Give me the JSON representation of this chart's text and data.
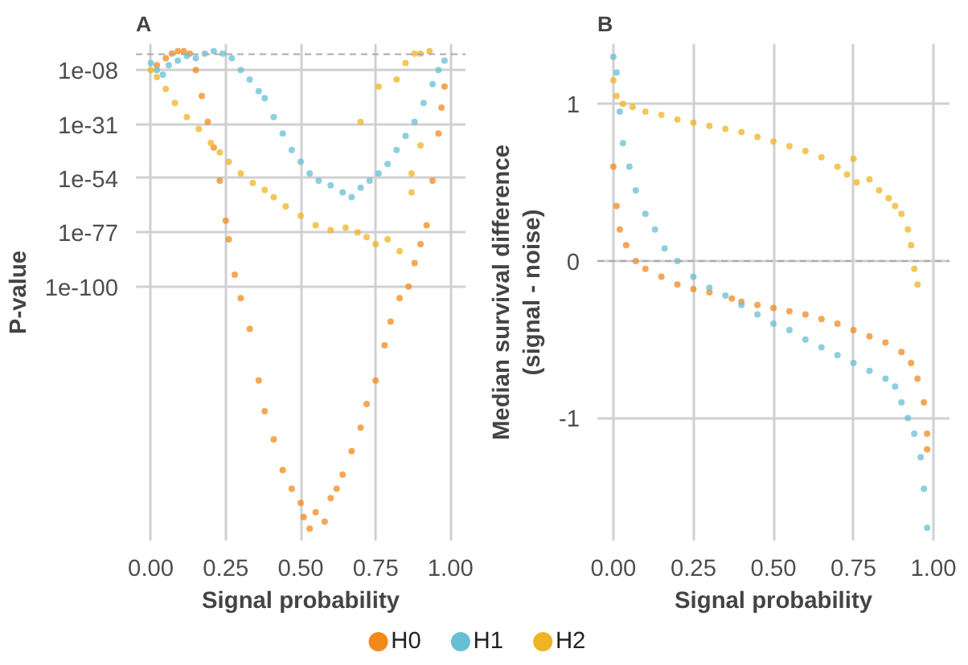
{
  "chart_data": [
    {
      "type": "scatter",
      "title": "A",
      "xlabel": "Signal probability",
      "ylabel": "P-value",
      "log": "y",
      "grid": true,
      "legend": "bottom",
      "marker": "circle",
      "xlim": [
        -0.05,
        1.05
      ],
      "xticks": [
        {
          "value": 0,
          "label": "0.00"
        },
        {
          "value": 0.25,
          "label": "0.25"
        },
        {
          "value": 0.5,
          "label": "0.50"
        },
        {
          "value": 0.75,
          "label": "0.75"
        },
        {
          "value": 1,
          "label": "1.00"
        }
      ],
      "ylim": [
        1e-208,
        1000.0
      ],
      "yticks": [
        {
          "value": 1e-08,
          "label": "1e-08"
        },
        {
          "value": 1e-31,
          "label": "1e-31"
        },
        {
          "value": 1e-54,
          "label": "1e-54"
        },
        {
          "value": 1e-77,
          "label": "1e-77"
        },
        {
          "value": 1e-100,
          "label": "1e-100"
        }
      ],
      "ref_lines": [
        {
          "axis": "y",
          "value": 0.05,
          "color": "#aaaaaa",
          "line_style": "dashed"
        }
      ],
      "series": [
        {
          "name": "H0",
          "color": "#f28a1b",
          "x": [
            0.02,
            0.05,
            0.07,
            0.09,
            0.11,
            0.13,
            0.15,
            0.17,
            0.19,
            0.21,
            0.23,
            0.25,
            0.26,
            0.28,
            0.3,
            0.33,
            0.36,
            0.38,
            0.41,
            0.44,
            0.47,
            0.5,
            0.51,
            0.53,
            0.55,
            0.58,
            0.6,
            0.62,
            0.64,
            0.67,
            0.7,
            0.72,
            0.75,
            0.78,
            0.8,
            0.83,
            0.86,
            0.88,
            0.9,
            0.92,
            0.94,
            0.96,
            0.97,
            0.98
          ],
          "values": [
            1e-06,
            0.001,
            0.1,
            1,
            1,
            0.1,
            1e-08,
            1e-19,
            1e-30,
            1e-41,
            1e-55,
            1e-72,
            1e-80,
            1e-95,
            1e-105,
            1e-118,
            1e-140,
            1e-153,
            1e-165,
            1e-178,
            1e-186,
            1e-192,
            1e-198,
            1e-203,
            1e-196,
            1e-200,
            1e-190,
            1e-186,
            1e-180,
            1e-170,
            1e-160,
            1e-150,
            1e-140,
            1e-125,
            1e-115,
            1e-105,
            1e-100,
            1e-90,
            1e-82,
            1e-74,
            1e-55,
            1e-35,
            1e-24,
            1e-15
          ]
        },
        {
          "name": "H1",
          "color": "#67bfd6",
          "x": [
            0.0,
            0.02,
            0.04,
            0.06,
            0.09,
            0.12,
            0.15,
            0.18,
            0.21,
            0.24,
            0.27,
            0.3,
            0.33,
            0.36,
            0.38,
            0.41,
            0.44,
            0.47,
            0.5,
            0.53,
            0.56,
            0.6,
            0.64,
            0.67,
            0.7,
            0.73,
            0.76,
            0.79,
            0.82,
            0.85,
            0.88,
            0.91,
            0.94,
            0.96,
            0.98
          ],
          "values": [
            1e-05,
            1e-08,
            1e-10,
            1e-06,
            0.0001,
            0.01,
            0.001,
            0.1,
            1,
            0.1,
            0.001,
            1e-08,
            1e-12,
            1e-17,
            1e-20,
            1e-28,
            1e-35,
            1e-42,
            1e-47,
            1e-52,
            1e-55,
            1e-57,
            1e-60,
            1e-62,
            1e-58,
            1e-55,
            1e-52,
            1e-48,
            1e-42,
            1e-36,
            1e-30,
            1e-22,
            1e-14,
            1e-08,
            0.0001
          ]
        },
        {
          "name": "H2",
          "color": "#f0b323",
          "x": [
            0.0,
            0.02,
            0.05,
            0.08,
            0.12,
            0.16,
            0.2,
            0.23,
            0.26,
            0.3,
            0.34,
            0.38,
            0.41,
            0.45,
            0.5,
            0.55,
            0.6,
            0.65,
            0.69,
            0.72,
            0.75,
            0.79,
            0.83,
            0.87,
            0.87,
            0.9,
            0.82,
            0.85,
            0.88,
            0.9,
            0.93,
            0.7,
            0.76
          ],
          "values": [
            1e-08,
            1e-11,
            1e-16,
            1e-22,
            1e-28,
            1e-33,
            1e-39,
            1e-43,
            1e-47,
            1e-52,
            1e-56,
            1e-59,
            1e-62,
            1e-66,
            1e-70,
            1e-74,
            1e-76,
            1e-75,
            1e-77,
            1e-79,
            1e-82,
            1e-80,
            1e-85,
            1e-60,
            1e-52,
            1e-40,
            1e-12,
            1e-05,
            0.1,
            0.1,
            1,
            1e-30,
            1e-15
          ]
        }
      ]
    },
    {
      "type": "scatter",
      "title": "B",
      "xlabel": "Signal probability",
      "ylabel": "Median survival difference\n(signal - noise)",
      "grid": true,
      "marker": "circle",
      "xlim": [
        -0.05,
        1.05
      ],
      "xticks": [
        {
          "value": 0,
          "label": "0.00"
        },
        {
          "value": 0.25,
          "label": "0.25"
        },
        {
          "value": 0.5,
          "label": "0.50"
        },
        {
          "value": 0.75,
          "label": "0.75"
        },
        {
          "value": 1,
          "label": "1.00"
        }
      ],
      "ylim": [
        -1.78,
        1.38
      ],
      "yticks": [
        -1,
        0,
        1
      ],
      "ref_lines": [
        {
          "axis": "y",
          "value": 0,
          "color": "#aaaaaa",
          "line_style": "dashed"
        }
      ],
      "series": [
        {
          "color": "#f28a1b",
          "x": [
            0.0,
            0.01,
            0.02,
            0.04,
            0.07,
            0.1,
            0.15,
            0.2,
            0.25,
            0.3,
            0.37,
            0.4,
            0.45,
            0.5,
            0.55,
            0.6,
            0.65,
            0.7,
            0.75,
            0.8,
            0.85,
            0.9,
            0.93,
            0.95,
            0.97,
            0.98,
            0.98
          ],
          "values": [
            0.6,
            0.35,
            0.2,
            0.1,
            0.0,
            -0.05,
            -0.1,
            -0.15,
            -0.18,
            -0.2,
            -0.24,
            -0.26,
            -0.28,
            -0.3,
            -0.32,
            -0.34,
            -0.37,
            -0.4,
            -0.44,
            -0.48,
            -0.52,
            -0.58,
            -0.65,
            -0.75,
            -0.9,
            -1.1,
            -1.2
          ]
        },
        {
          "color": "#67bfd6",
          "x": [
            0.0,
            0.01,
            0.02,
            0.03,
            0.05,
            0.07,
            0.1,
            0.13,
            0.16,
            0.2,
            0.25,
            0.3,
            0.35,
            0.4,
            0.45,
            0.5,
            0.55,
            0.6,
            0.65,
            0.7,
            0.75,
            0.8,
            0.85,
            0.88,
            0.9,
            0.92,
            0.94,
            0.96,
            0.97,
            0.98
          ],
          "values": [
            1.3,
            1.2,
            0.95,
            0.75,
            0.6,
            0.45,
            0.3,
            0.2,
            0.08,
            0.0,
            -0.1,
            -0.17,
            -0.22,
            -0.28,
            -0.34,
            -0.4,
            -0.44,
            -0.5,
            -0.55,
            -0.6,
            -0.65,
            -0.7,
            -0.75,
            -0.8,
            -0.9,
            -1.0,
            -1.1,
            -1.25,
            -1.45,
            -1.7
          ]
        },
        {
          "color": "#f0b323",
          "x": [
            0.0,
            0.01,
            0.03,
            0.06,
            0.1,
            0.15,
            0.2,
            0.25,
            0.3,
            0.35,
            0.4,
            0.45,
            0.5,
            0.55,
            0.6,
            0.65,
            0.7,
            0.73,
            0.76,
            0.8,
            0.83,
            0.86,
            0.88,
            0.9,
            0.92,
            0.93,
            0.94,
            0.95,
            0.75
          ],
          "values": [
            1.15,
            1.05,
            1.0,
            0.98,
            0.95,
            0.93,
            0.9,
            0.88,
            0.86,
            0.84,
            0.82,
            0.79,
            0.76,
            0.73,
            0.7,
            0.66,
            0.6,
            0.55,
            0.5,
            0.52,
            0.45,
            0.4,
            0.35,
            0.3,
            0.2,
            0.1,
            -0.05,
            -0.15,
            0.65
          ]
        }
      ]
    }
  ]
}
